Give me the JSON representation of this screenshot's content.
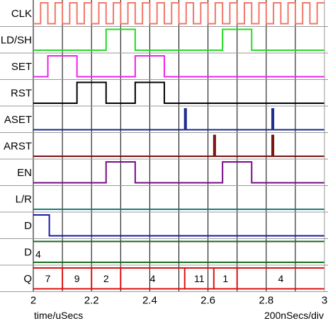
{
  "signals": [
    {
      "name": "CLK",
      "color": "#f07868",
      "type": "wave",
      "edges": [
        [
          2.0,
          0
        ],
        [
          2.025,
          1
        ],
        [
          2.05,
          0
        ],
        [
          2.075,
          1
        ],
        [
          2.1,
          0
        ],
        [
          2.125,
          1
        ],
        [
          2.15,
          0
        ],
        [
          2.175,
          1
        ],
        [
          2.2,
          0
        ],
        [
          2.225,
          1
        ],
        [
          2.25,
          0
        ],
        [
          2.275,
          1
        ],
        [
          2.3,
          0
        ],
        [
          2.325,
          1
        ],
        [
          2.35,
          0
        ],
        [
          2.375,
          1
        ],
        [
          2.4,
          0
        ],
        [
          2.425,
          1
        ],
        [
          2.45,
          0
        ],
        [
          2.475,
          1
        ],
        [
          2.5,
          0
        ],
        [
          2.525,
          1
        ],
        [
          2.55,
          0
        ],
        [
          2.575,
          1
        ],
        [
          2.6,
          0
        ],
        [
          2.625,
          1
        ],
        [
          2.65,
          0
        ],
        [
          2.675,
          1
        ],
        [
          2.7,
          0
        ],
        [
          2.725,
          1
        ],
        [
          2.75,
          0
        ],
        [
          2.775,
          1
        ],
        [
          2.8,
          0
        ],
        [
          2.825,
          1
        ],
        [
          2.85,
          0
        ],
        [
          2.875,
          1
        ],
        [
          2.9,
          0
        ],
        [
          2.925,
          1
        ],
        [
          2.95,
          0
        ],
        [
          2.975,
          1
        ]
      ]
    },
    {
      "name": "LD/SH",
      "color": "#22dd22",
      "type": "wave",
      "edges": [
        [
          2.0,
          0
        ],
        [
          2.25,
          1
        ],
        [
          2.35,
          0
        ],
        [
          2.65,
          1
        ],
        [
          2.75,
          0
        ]
      ]
    },
    {
      "name": "SET",
      "color": "#ee22ee",
      "type": "wave",
      "edges": [
        [
          2.0,
          0
        ],
        [
          2.05,
          1
        ],
        [
          2.15,
          0
        ],
        [
          2.35,
          1
        ],
        [
          2.45,
          0
        ]
      ]
    },
    {
      "name": "RST",
      "color": "#000000",
      "type": "wave",
      "edges": [
        [
          2.0,
          0
        ],
        [
          2.15,
          1
        ],
        [
          2.25,
          0
        ],
        [
          2.35,
          1
        ],
        [
          2.45,
          0
        ]
      ]
    },
    {
      "name": "ASET",
      "color": "#1a2a8a",
      "type": "wave",
      "edges": [
        [
          2.0,
          0
        ],
        [
          2.52,
          1
        ],
        [
          2.525,
          0
        ],
        [
          2.82,
          1
        ],
        [
          2.825,
          0
        ]
      ]
    },
    {
      "name": "ARST",
      "color": "#7a1010",
      "type": "wave",
      "edges": [
        [
          2.0,
          0
        ],
        [
          2.62,
          1
        ],
        [
          2.625,
          0
        ],
        [
          2.82,
          1
        ],
        [
          2.825,
          0
        ]
      ]
    },
    {
      "name": "EN",
      "color": "#7a0a8a",
      "type": "wave",
      "edges": [
        [
          2.0,
          0
        ],
        [
          2.25,
          1
        ],
        [
          2.35,
          0
        ],
        [
          2.65,
          1
        ],
        [
          2.75,
          0
        ]
      ]
    },
    {
      "name": "L/R",
      "color": "#1a7a7a",
      "type": "wave",
      "edges": [
        [
          2.0,
          0
        ]
      ]
    },
    {
      "name": "D",
      "color": "#1a1aaa",
      "type": "wave",
      "edges": [
        [
          2.0,
          1
        ],
        [
          2.055,
          0
        ]
      ]
    },
    {
      "name": "D",
      "color": "#1a6a1a",
      "type": "bus",
      "segments": [
        {
          "start": 2.0,
          "end": 3.0,
          "value": "4"
        }
      ]
    },
    {
      "name": "Q",
      "color": "#dd1111",
      "type": "bus",
      "segments": [
        {
          "start": 2.0,
          "end": 2.1,
          "value": "7"
        },
        {
          "start": 2.1,
          "end": 2.2,
          "value": "9"
        },
        {
          "start": 2.2,
          "end": 2.3,
          "value": "2"
        },
        {
          "start": 2.3,
          "end": 2.52,
          "value": "4"
        },
        {
          "start": 2.52,
          "end": 2.62,
          "value": "11"
        },
        {
          "start": 2.62,
          "end": 2.7,
          "value": "1"
        },
        {
          "start": 2.7,
          "end": 3.0,
          "value": "4"
        }
      ]
    }
  ],
  "axis": {
    "min": 2.0,
    "max": 3.0,
    "ticks": [
      "2",
      "2.2",
      "2.4",
      "2.6",
      "2.8",
      "3"
    ],
    "tick_values": [
      2.0,
      2.2,
      2.4,
      2.6,
      2.8,
      3.0
    ],
    "gridlines": [
      2.0,
      2.1,
      2.2,
      2.3,
      2.4,
      2.5,
      2.6,
      2.7,
      2.8,
      2.9,
      3.0
    ],
    "unit_label": "time/uSecs",
    "scale_label": "200nSecs/div"
  },
  "colors": {
    "row_separator": "#999999",
    "gridline": "#000000",
    "frame": "#999999"
  }
}
